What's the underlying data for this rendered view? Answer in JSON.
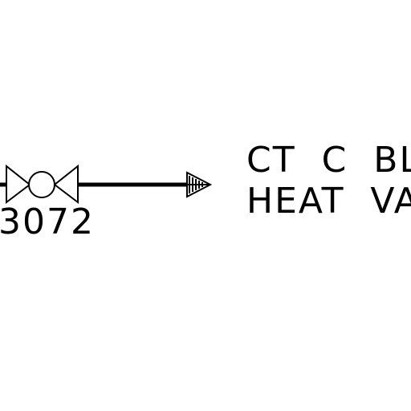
{
  "diagram": {
    "valve_tag": "3072",
    "destination_line_1": "CT  C  BL",
    "destination_line_2": "HEAT  VA",
    "line_color": "#000000",
    "background_color": "#ffffff",
    "symbols": [
      "globe-valve-icon",
      "flow-arrow-icon"
    ]
  }
}
